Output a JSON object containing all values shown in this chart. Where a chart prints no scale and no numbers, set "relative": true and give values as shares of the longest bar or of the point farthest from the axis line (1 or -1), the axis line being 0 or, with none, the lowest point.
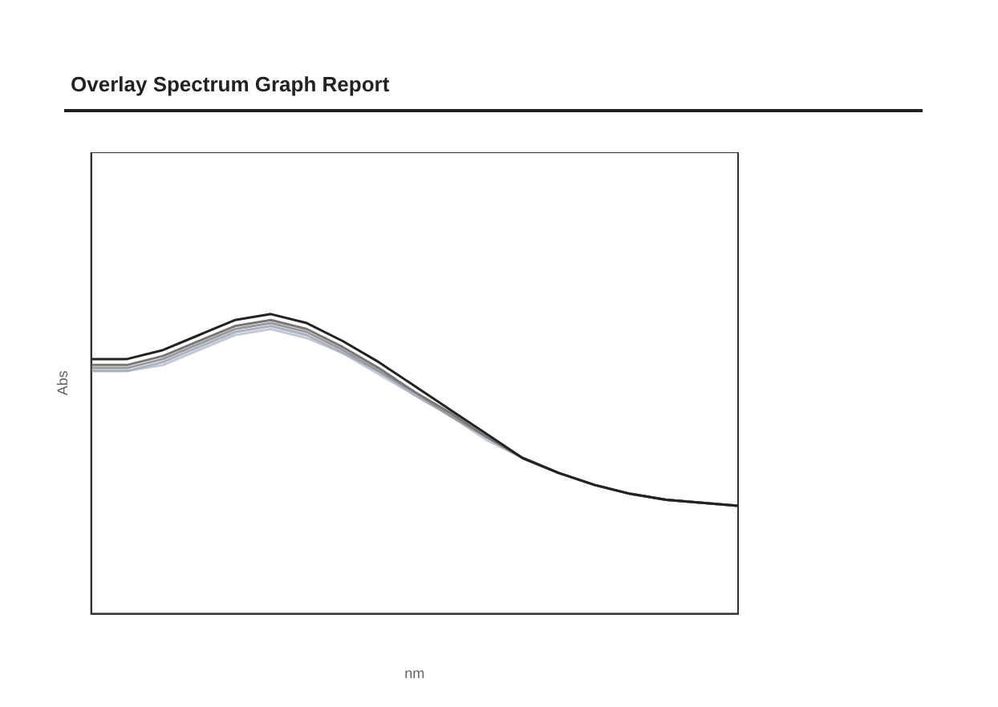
{
  "chart_data": {
    "type": "line",
    "title": "Overlay Spectrum Graph Report",
    "xlabel": "nm",
    "ylabel": "Abs",
    "relative": true,
    "grid": false,
    "legend": false,
    "marker": "none",
    "line_style": "solid",
    "categories": [
      null,
      null,
      null,
      null,
      null,
      null,
      null,
      null,
      null,
      null,
      null,
      null,
      null,
      null,
      null,
      null,
      null,
      null,
      null
    ],
    "series": [
      {
        "color": "#222222",
        "values": [
          0.85,
          0.85,
          0.88,
          0.93,
          0.98,
          1.0,
          0.97,
          0.91,
          0.84,
          0.76,
          0.68,
          0.6,
          0.52,
          0.47,
          0.43,
          0.4,
          0.38,
          0.37,
          0.36
        ]
      },
      {
        "color": "#777777",
        "values": [
          0.83,
          0.83,
          0.86,
          0.91,
          0.96,
          0.98,
          0.95,
          0.89,
          0.82,
          0.74,
          0.67,
          0.59,
          0.52,
          0.47,
          0.43,
          0.4,
          0.38,
          0.37,
          0.36
        ]
      },
      {
        "color": "#999999",
        "values": [
          0.82,
          0.82,
          0.85,
          0.9,
          0.95,
          0.97,
          0.94,
          0.88,
          0.81,
          0.74,
          0.66,
          0.59,
          0.52,
          0.47,
          0.43,
          0.4,
          0.38,
          0.37,
          0.36
        ]
      },
      {
        "color": "#aab0c0",
        "values": [
          0.81,
          0.81,
          0.84,
          0.89,
          0.94,
          0.96,
          0.93,
          0.87,
          0.81,
          0.73,
          0.66,
          0.59,
          0.52,
          0.47,
          0.43,
          0.4,
          0.38,
          0.37,
          0.36
        ]
      },
      {
        "color": "#c0c8d8",
        "values": [
          0.81,
          0.81,
          0.83,
          0.88,
          0.93,
          0.95,
          0.92,
          0.87,
          0.8,
          0.73,
          0.66,
          0.58,
          0.52,
          0.47,
          0.43,
          0.4,
          0.38,
          0.37,
          0.36
        ]
      }
    ]
  }
}
